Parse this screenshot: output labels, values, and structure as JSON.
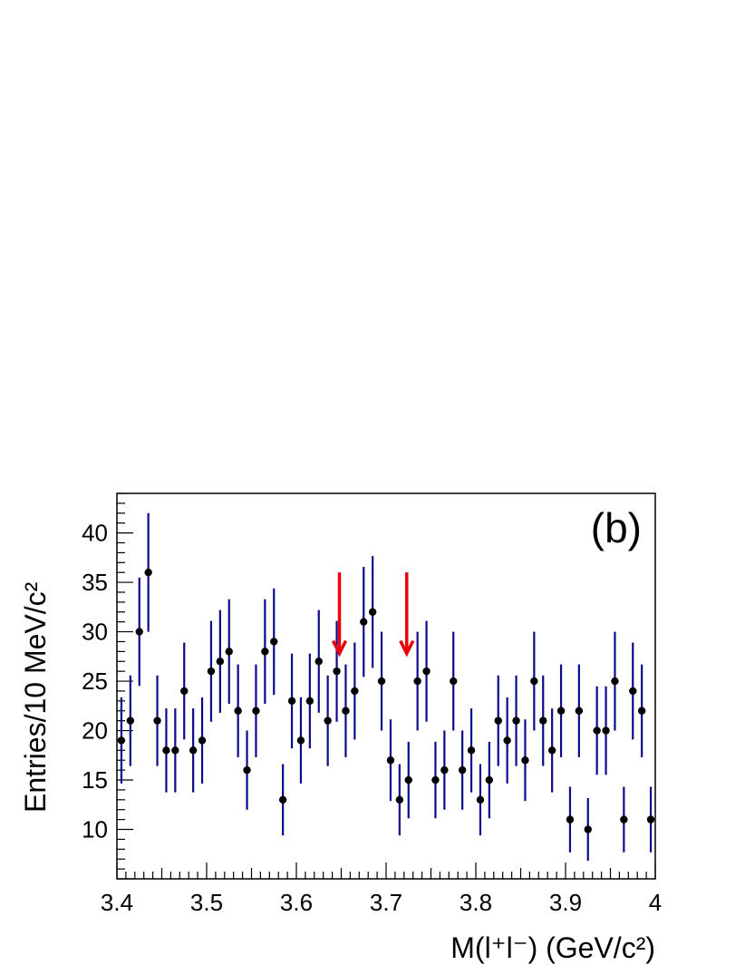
{
  "chart_data": {
    "type": "scatter",
    "title": "",
    "panel_label": "(b)",
    "xlabel": "M(l⁺l⁻) (GeV/c²)",
    "ylabel": "Entries/10 MeV/c²",
    "xlim": [
      3.4,
      4.0
    ],
    "ylim": [
      5,
      44
    ],
    "x_ticks": [
      "3.4",
      "3.5",
      "3.6",
      "3.7",
      "3.8",
      "3.9",
      "4"
    ],
    "y_ticks": [
      "10",
      "15",
      "20",
      "25",
      "30",
      "35",
      "40"
    ],
    "grid": false,
    "marker_color": "#000000",
    "errorbar_color": "#0a0a8c",
    "arrow_color": "#e8000b",
    "series": [
      {
        "x": [
          3.405,
          3.415,
          3.425,
          3.435,
          3.445,
          3.455,
          3.465,
          3.475,
          3.485,
          3.495,
          3.505,
          3.515,
          3.525,
          3.535,
          3.545,
          3.555,
          3.565,
          3.575,
          3.585,
          3.595,
          3.605,
          3.615,
          3.625,
          3.635,
          3.645,
          3.655,
          3.665,
          3.675,
          3.685,
          3.695,
          3.705,
          3.715,
          3.725,
          3.735,
          3.745,
          3.755,
          3.765,
          3.775,
          3.785,
          3.795,
          3.805,
          3.815,
          3.825,
          3.835,
          3.845,
          3.855,
          3.865,
          3.875,
          3.885,
          3.895,
          3.905,
          3.915,
          3.925,
          3.935,
          3.945,
          3.955,
          3.965,
          3.975,
          3.985,
          3.995
        ],
        "y": [
          19,
          21,
          30,
          36,
          21,
          18,
          18,
          24,
          18,
          19,
          26,
          27,
          28,
          22,
          16,
          22,
          28,
          29,
          13,
          23,
          19,
          23,
          27,
          21,
          26,
          22,
          24,
          31,
          32,
          25,
          17,
          13,
          15,
          25,
          26,
          15,
          16,
          25,
          16,
          18,
          13,
          15,
          21,
          19,
          21,
          17,
          25,
          21,
          18,
          22,
          11,
          22,
          10,
          20,
          20,
          25,
          11,
          24,
          22,
          11
        ]
      }
    ],
    "arrows": [
      {
        "x": 3.648,
        "y_from": 36,
        "y_to": 27.8
      },
      {
        "x": 3.723,
        "y_from": 36,
        "y_to": 27.8
      }
    ]
  }
}
